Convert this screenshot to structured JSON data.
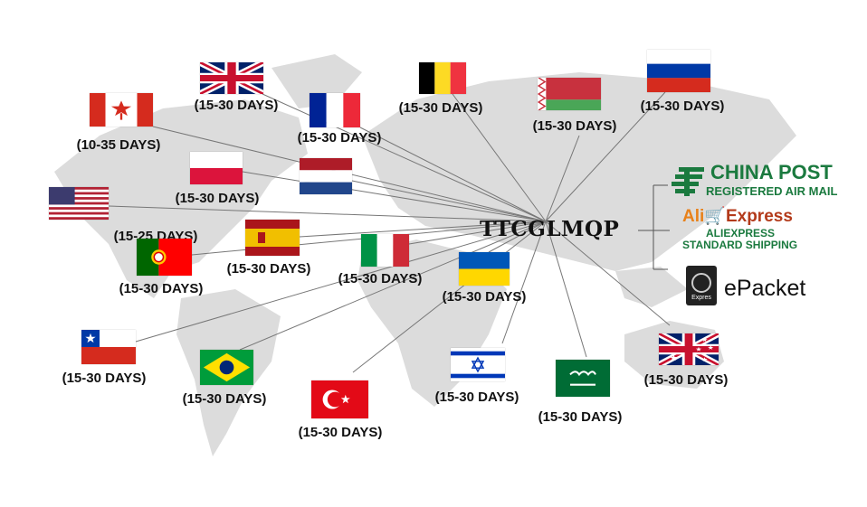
{
  "hub": {
    "title": "TTCGLMQP"
  },
  "destinations": [
    {
      "flag": "uk-flag",
      "label": "(15-30 DAYS)"
    },
    {
      "flag": "canada-flag",
      "label": "(10-35 DAYS)"
    },
    {
      "flag": "france-flag",
      "label": "(15-30 DAYS)"
    },
    {
      "flag": "belgium-flag",
      "label": "(15-30 DAYS)"
    },
    {
      "flag": "belarus-flag",
      "label": "(15-30 DAYS)"
    },
    {
      "flag": "russia-flag",
      "label": "(15-30 DAYS)"
    },
    {
      "flag": "poland-flag",
      "label": "(15-30 DAYS)"
    },
    {
      "flag": "netherlands-flag",
      "label": ""
    },
    {
      "flag": "usa-flag",
      "label": "(15-25 DAYS)"
    },
    {
      "flag": "spain-flag",
      "label": "(15-30 DAYS)"
    },
    {
      "flag": "portugal-flag",
      "label": "(15-30 DAYS)"
    },
    {
      "flag": "italy-flag",
      "label": "(15-30 DAYS)"
    },
    {
      "flag": "ukraine-flag",
      "label": "(15-30 DAYS)"
    },
    {
      "flag": "chile-flag",
      "label": "(15-30 DAYS)"
    },
    {
      "flag": "brazil-flag",
      "label": "(15-30 DAYS)"
    },
    {
      "flag": "turkey-flag",
      "label": "(15-30 DAYS)"
    },
    {
      "flag": "israel-flag",
      "label": "(15-30 DAYS)"
    },
    {
      "flag": "saudi-arabia-flag",
      "label": "(15-30 DAYS)"
    },
    {
      "flag": "australia-flag",
      "label": "(15-30 DAYS)"
    }
  ],
  "shipping": {
    "china_post": {
      "title": "CHINA POST",
      "subtitle": "REGISTERED AIR MAIL",
      "icon": "china-post-logo-icon"
    },
    "aliexpress": {
      "logo_ali": "Ali",
      "logo_express": "Express",
      "line1": "ALIEXPRESS",
      "line2": "STANDARD SHIPPING"
    },
    "epacket": {
      "label": "ePacket",
      "icon_text": "Expres",
      "icon": "epacket-globe-icon"
    }
  },
  "colors": {
    "map": "#dcdcdc",
    "lines": "#777777",
    "china_post_green": "#1b7a3f",
    "aliexpress_red": "#b33a1a",
    "aliexpress_orange": "#e8811a"
  }
}
